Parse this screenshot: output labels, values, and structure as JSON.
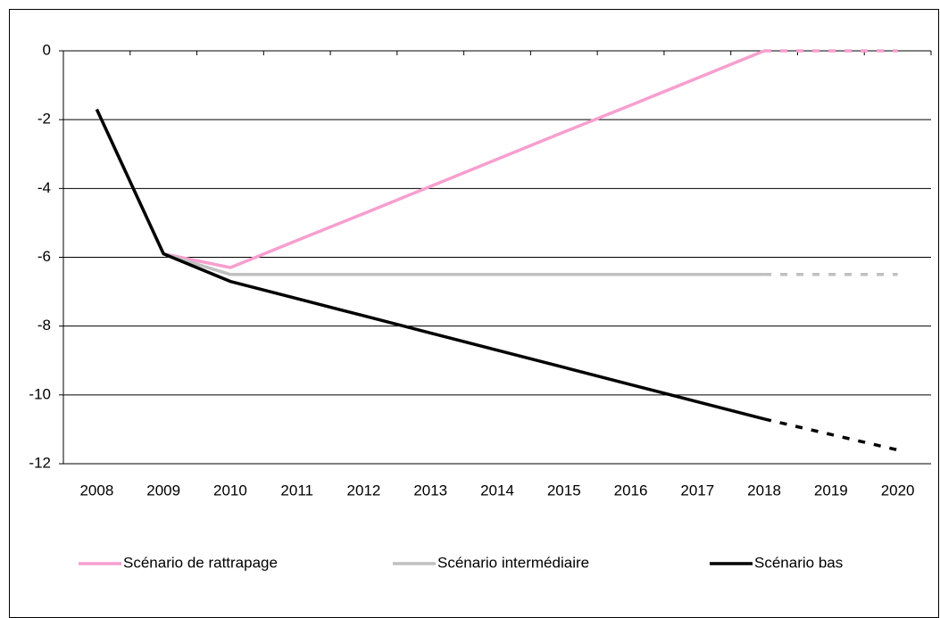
{
  "chart_data": {
    "type": "line",
    "categories": [
      "2008",
      "2009",
      "2010",
      "2011",
      "2012",
      "2013",
      "2014",
      "2015",
      "2016",
      "2017",
      "2018",
      "2019",
      "2020"
    ],
    "series": [
      {
        "name": "Scénario de rattrapage",
        "color": "#f79fcf",
        "values": [
          -1.7,
          -5.9,
          -6.3,
          -5.51,
          -4.73,
          -3.94,
          -3.15,
          -2.36,
          -1.58,
          -0.79,
          0,
          0,
          0
        ]
      },
      {
        "name": "Scénario intermédiaire",
        "color": "#c0c0c0",
        "values": [
          -1.7,
          -5.9,
          -6.5,
          -6.5,
          -6.5,
          -6.5,
          -6.5,
          -6.5,
          -6.5,
          -6.5,
          -6.5,
          -6.5,
          -6.5
        ]
      },
      {
        "name": "Scénario bas",
        "color": "#000000",
        "values": [
          -1.7,
          -5.9,
          -6.7,
          -7.2,
          -7.7,
          -8.2,
          -8.7,
          -9.2,
          -9.7,
          -10.2,
          -10.7,
          -11.15,
          -11.6
        ]
      }
    ],
    "dashed_from": "2018",
    "ylim": [
      -12,
      0
    ],
    "yticks": [
      -12,
      -10,
      -8,
      -6,
      -4,
      -2,
      0
    ],
    "grid": true,
    "legend": "bottom"
  }
}
